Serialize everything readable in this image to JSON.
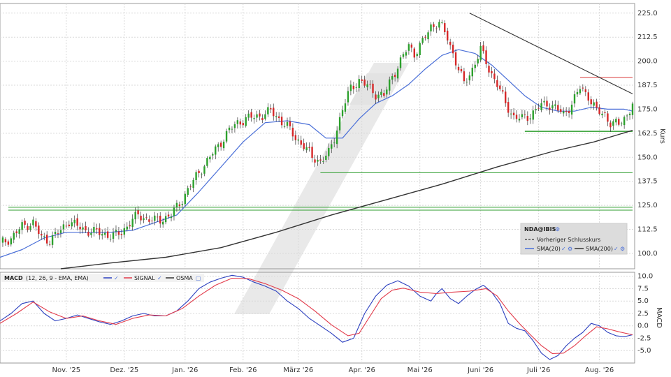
{
  "chart_data": [
    {
      "type": "candlestick",
      "panel": "price",
      "ylabel": "Kurs",
      "ylim": [
        92,
        230
      ],
      "yticks": [
        100.0,
        112.5,
        125.0,
        137.5,
        150.0,
        162.5,
        175.0,
        187.5,
        200.0,
        212.5,
        225.0
      ],
      "ytick_labels": [
        "100.0",
        "112.5",
        "125.0",
        "137.5",
        "150.0",
        "162.5",
        "175.0",
        "187.5",
        "200.0",
        "212.5",
        "225.0"
      ],
      "xtick_labels": [
        "Nov. '25",
        "Dez. '25",
        "Jan. '26",
        "Feb. '26",
        "März '26",
        "Apr. '26",
        "Mai '26",
        "Juni '26",
        "Juli '26",
        "Aug. '26"
      ],
      "close_series": [
        [
          0,
          105
        ],
        [
          4,
          108
        ],
        [
          8,
          114
        ],
        [
          12,
          116
        ],
        [
          15,
          108
        ],
        [
          18,
          107
        ],
        [
          22,
          112
        ],
        [
          25,
          117
        ],
        [
          28,
          114
        ],
        [
          31,
          112
        ],
        [
          35,
          111
        ],
        [
          38,
          110
        ],
        [
          41,
          109
        ],
        [
          44,
          111
        ],
        [
          47,
          116
        ],
        [
          50,
          120
        ],
        [
          53,
          118
        ],
        [
          56,
          117
        ],
        [
          59,
          118
        ],
        [
          62,
          120
        ],
        [
          65,
          126
        ],
        [
          68,
          133
        ],
        [
          71,
          140
        ],
        [
          74,
          146
        ],
        [
          77,
          152
        ],
        [
          80,
          158
        ],
        [
          83,
          164
        ],
        [
          86,
          168
        ],
        [
          89,
          170
        ],
        [
          92,
          171
        ],
        [
          95,
          172
        ],
        [
          98,
          174
        ],
        [
          101,
          170
        ],
        [
          104,
          166
        ],
        [
          107,
          160
        ],
        [
          110,
          156
        ],
        [
          113,
          150
        ],
        [
          116,
          148
        ],
        [
          119,
          152
        ],
        [
          121,
          160
        ],
        [
          124,
          175
        ],
        [
          127,
          186
        ],
        [
          130,
          190
        ],
        [
          133,
          187
        ],
        [
          136,
          183
        ],
        [
          139,
          182
        ],
        [
          142,
          192
        ],
        [
          145,
          200
        ],
        [
          148,
          208
        ],
        [
          150,
          204
        ],
        [
          153,
          210
        ],
        [
          156,
          218
        ],
        [
          159,
          220
        ],
        [
          162,
          212
        ],
        [
          165,
          200
        ],
        [
          168,
          188
        ],
        [
          171,
          196
        ],
        [
          174,
          206
        ],
        [
          177,
          196
        ],
        [
          180,
          188
        ],
        [
          183,
          178
        ],
        [
          186,
          171
        ],
        [
          189,
          170
        ],
        [
          192,
          172
        ],
        [
          195,
          176
        ],
        [
          198,
          178
        ],
        [
          201,
          176
        ],
        [
          204,
          172
        ],
        [
          207,
          178
        ],
        [
          210,
          186
        ],
        [
          213,
          182
        ],
        [
          216,
          174
        ],
        [
          219,
          172
        ],
        [
          221,
          168
        ],
        [
          224,
          167
        ],
        [
          227,
          172
        ],
        [
          229,
          178
        ]
      ],
      "sma20": [
        [
          0,
          98
        ],
        [
          8,
          102
        ],
        [
          16,
          108
        ],
        [
          24,
          111
        ],
        [
          32,
          111
        ],
        [
          40,
          111
        ],
        [
          48,
          112
        ],
        [
          56,
          116
        ],
        [
          64,
          120
        ],
        [
          72,
          132
        ],
        [
          80,
          145
        ],
        [
          88,
          158
        ],
        [
          96,
          168
        ],
        [
          104,
          169
        ],
        [
          112,
          167
        ],
        [
          118,
          160
        ],
        [
          124,
          160
        ],
        [
          130,
          170
        ],
        [
          136,
          178
        ],
        [
          142,
          182
        ],
        [
          148,
          188
        ],
        [
          154,
          196
        ],
        [
          160,
          203
        ],
        [
          166,
          206
        ],
        [
          172,
          204
        ],
        [
          178,
          198
        ],
        [
          184,
          190
        ],
        [
          190,
          182
        ],
        [
          196,
          176
        ],
        [
          202,
          174
        ],
        [
          208,
          174
        ],
        [
          214,
          176
        ],
        [
          220,
          175
        ],
        [
          226,
          175
        ],
        [
          229,
          174
        ]
      ],
      "sma200": [
        [
          22,
          92
        ],
        [
          40,
          95
        ],
        [
          60,
          98
        ],
        [
          80,
          103
        ],
        [
          100,
          111
        ],
        [
          120,
          120
        ],
        [
          140,
          128
        ],
        [
          160,
          136
        ],
        [
          180,
          145
        ],
        [
          200,
          153
        ],
        [
          215,
          158
        ],
        [
          229,
          164
        ]
      ],
      "trendline": [
        [
          170,
          225
        ],
        [
          229,
          183
        ]
      ],
      "resistance": {
        "value": 191.5,
        "from": 210,
        "to": 229
      },
      "support_lines": [
        {
          "value": 163.5,
          "from": 190,
          "to": 229
        },
        {
          "value": 142,
          "from": 116,
          "to": 229
        },
        {
          "value": 124,
          "from": 3,
          "to": 229
        },
        {
          "value": 122.5,
          "from": 3,
          "to": 229
        }
      ],
      "legend": {
        "title": "NDA@IBIS",
        "prev_close": "Vorheriger Schlusskurs",
        "sma20": "SMA(20)",
        "sma200": "SMA(200)",
        "placement": "bottom-right"
      },
      "colors": {
        "up": "#2ca02c",
        "down": "#d62728",
        "sma20": "#4a6fd8",
        "sma200": "#333333",
        "trend": "#333333",
        "resistance": "#e06060",
        "support": "#2e9e2e"
      }
    },
    {
      "type": "line",
      "panel": "macd",
      "title": "MACD",
      "params": "(12, 26, 9 - EMA, EMA)",
      "ylabel": "MACD",
      "ylim": [
        -7.5,
        10.8
      ],
      "yticks": [
        -5.0,
        -2.5,
        0.0,
        2.5,
        5.0,
        7.5,
        10.0
      ],
      "ytick_labels": [
        "-5.0",
        "-2.5",
        "0.0",
        "2.5",
        "5.0",
        "7.5",
        "10.0"
      ],
      "series": [
        {
          "name": "MACD",
          "color": "#2b3fbf",
          "points": [
            [
              0,
              1
            ],
            [
              4,
              2.5
            ],
            [
              8,
              4.5
            ],
            [
              12,
              5
            ],
            [
              16,
              2.5
            ],
            [
              20,
              1
            ],
            [
              24,
              1.5
            ],
            [
              28,
              2.2
            ],
            [
              32,
              1.5
            ],
            [
              36,
              0.8
            ],
            [
              40,
              0.3
            ],
            [
              44,
              1
            ],
            [
              48,
              2
            ],
            [
              52,
              2.5
            ],
            [
              56,
              2
            ],
            [
              60,
              2
            ],
            [
              64,
              3
            ],
            [
              68,
              5
            ],
            [
              72,
              7.5
            ],
            [
              76,
              8.8
            ],
            [
              80,
              9.6
            ],
            [
              84,
              10.2
            ],
            [
              88,
              9.8
            ],
            [
              92,
              8.8
            ],
            [
              96,
              8
            ],
            [
              100,
              7
            ],
            [
              104,
              5
            ],
            [
              108,
              3.5
            ],
            [
              112,
              1.5
            ],
            [
              116,
              0
            ],
            [
              120,
              -1.5
            ],
            [
              124,
              -3.3
            ],
            [
              128,
              -2.5
            ],
            [
              132,
              2.5
            ],
            [
              136,
              6
            ],
            [
              140,
              8.2
            ],
            [
              144,
              9.1
            ],
            [
              148,
              8
            ],
            [
              152,
              6
            ],
            [
              156,
              5
            ],
            [
              158,
              6.5
            ],
            [
              160,
              7.5
            ],
            [
              163,
              5.5
            ],
            [
              166,
              4.5
            ],
            [
              169,
              6
            ],
            [
              172,
              7.3
            ],
            [
              175,
              8.2
            ],
            [
              178,
              6.8
            ],
            [
              181,
              4.5
            ],
            [
              184,
              0.5
            ],
            [
              187,
              -0.5
            ],
            [
              190,
              -1
            ],
            [
              193,
              -3
            ],
            [
              196,
              -5.5
            ],
            [
              199,
              -6.8
            ],
            [
              202,
              -6
            ],
            [
              205,
              -4
            ],
            [
              208,
              -2.5
            ],
            [
              211,
              -1.3
            ],
            [
              214,
              0.5
            ],
            [
              217,
              0
            ],
            [
              220,
              -1.3
            ],
            [
              223,
              -2
            ],
            [
              226,
              -2.2
            ],
            [
              229,
              -1.8
            ]
          ]
        },
        {
          "name": "SIGNAL",
          "color": "#e23a4a",
          "points": [
            [
              0,
              0.5
            ],
            [
              6,
              2.5
            ],
            [
              12,
              4.8
            ],
            [
              18,
              2.8
            ],
            [
              24,
              1.5
            ],
            [
              30,
              2
            ],
            [
              36,
              1
            ],
            [
              42,
              0.3
            ],
            [
              48,
              1.5
            ],
            [
              54,
              2.2
            ],
            [
              60,
              2
            ],
            [
              66,
              3.5
            ],
            [
              72,
              6
            ],
            [
              78,
              8.2
            ],
            [
              84,
              9.6
            ],
            [
              90,
              9.5
            ],
            [
              96,
              8.5
            ],
            [
              102,
              7.2
            ],
            [
              108,
              5.5
            ],
            [
              114,
              3
            ],
            [
              120,
              0.2
            ],
            [
              126,
              -2
            ],
            [
              130,
              -1.5
            ],
            [
              134,
              2
            ],
            [
              138,
              5.5
            ],
            [
              142,
              7.2
            ],
            [
              146,
              7.6
            ],
            [
              152,
              6.8
            ],
            [
              158,
              6.5
            ],
            [
              164,
              6.8
            ],
            [
              170,
              7
            ],
            [
              176,
              7.5
            ],
            [
              180,
              6
            ],
            [
              184,
              3
            ],
            [
              188,
              0.5
            ],
            [
              192,
              -1.8
            ],
            [
              196,
              -4
            ],
            [
              200,
              -5.6
            ],
            [
              204,
              -5.5
            ],
            [
              208,
              -4
            ],
            [
              212,
              -2
            ],
            [
              216,
              -0.2
            ],
            [
              220,
              -0.6
            ],
            [
              224,
              -1.2
            ],
            [
              229,
              -1.8
            ]
          ]
        }
      ],
      "legend": {
        "macd": "MACD",
        "signal": "SIGNAL",
        "osma": "OSMA",
        "placement": "top-left"
      },
      "xtick_labels": [
        "Nov. '25",
        "Dez. '25",
        "Jan. '26",
        "Feb. '26",
        "März '26",
        "Apr. '26",
        "Mai '26",
        "Juni '26",
        "Juli '26",
        "Aug. '26"
      ]
    }
  ],
  "colors": {
    "grid": "#d9d9d9",
    "axis": "#999999",
    "text": "#333333",
    "legend_bg": "#dcdcdc",
    "watermark": "#e3e3e3"
  }
}
